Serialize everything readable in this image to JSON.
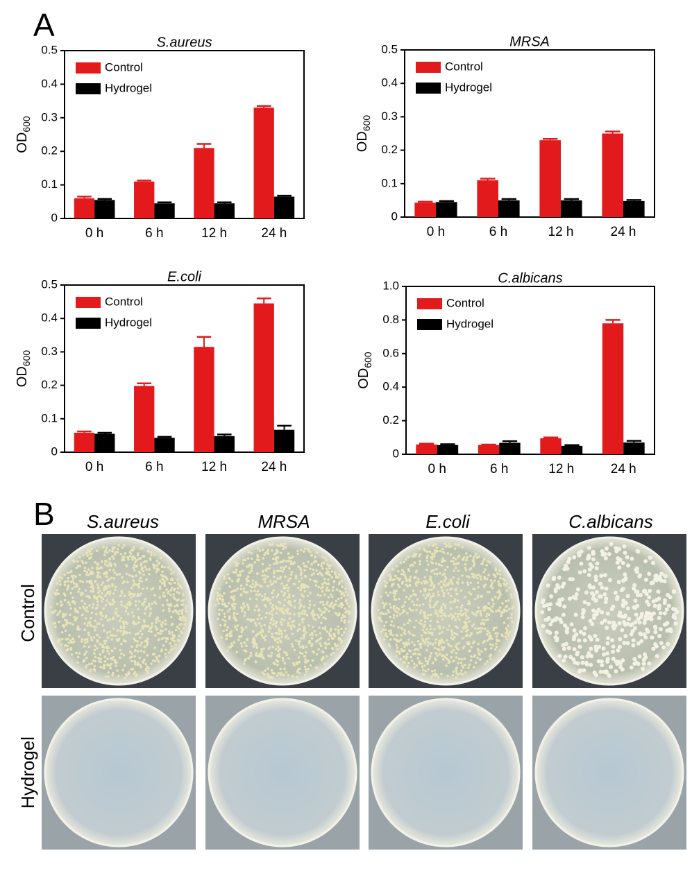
{
  "chart_data": [
    {
      "type": "bar",
      "title": "S.aureus",
      "ylabel": "OD",
      "ylabel_subscript": "600",
      "categories": [
        "0 h",
        "6 h",
        "12 h",
        "24 h"
      ],
      "series": [
        {
          "name": "Control",
          "color": "#e31a1c",
          "values": [
            0.06,
            0.11,
            0.21,
            0.33
          ],
          "errors": [
            0.005,
            0.003,
            0.012,
            0.005
          ]
        },
        {
          "name": "Hydrogel",
          "color": "#000000",
          "values": [
            0.055,
            0.045,
            0.045,
            0.065
          ],
          "errors": [
            0.003,
            0.003,
            0.003,
            0.003
          ]
        }
      ],
      "ylim": [
        0,
        0.5
      ],
      "yticks": [
        0,
        0.1,
        0.2,
        0.3,
        0.4,
        0.5
      ],
      "legend": "upper left"
    },
    {
      "type": "bar",
      "title": "MRSA",
      "ylabel": "OD",
      "ylabel_subscript": "600",
      "categories": [
        "0 h",
        "6 h",
        "12 h",
        "24 h"
      ],
      "series": [
        {
          "name": "Control",
          "color": "#e31a1c",
          "values": [
            0.043,
            0.11,
            0.23,
            0.25
          ],
          "errors": [
            0.003,
            0.005,
            0.004,
            0.006
          ]
        },
        {
          "name": "Hydrogel",
          "color": "#000000",
          "values": [
            0.045,
            0.05,
            0.05,
            0.048
          ],
          "errors": [
            0.003,
            0.004,
            0.004,
            0.003
          ]
        }
      ],
      "ylim": [
        0,
        0.5
      ],
      "yticks": [
        0,
        0.1,
        0.2,
        0.3,
        0.4,
        0.5
      ],
      "legend": "upper left"
    },
    {
      "type": "bar",
      "title": "E.coli",
      "ylabel": "OD",
      "ylabel_subscript": "600",
      "categories": [
        "0 h",
        "6 h",
        "12 h",
        "24 h"
      ],
      "series": [
        {
          "name": "Control",
          "color": "#e31a1c",
          "values": [
            0.058,
            0.198,
            0.315,
            0.445
          ],
          "errors": [
            0.004,
            0.008,
            0.03,
            0.015
          ]
        },
        {
          "name": "Hydrogel",
          "color": "#000000",
          "values": [
            0.055,
            0.043,
            0.048,
            0.067
          ],
          "errors": [
            0.003,
            0.003,
            0.005,
            0.012
          ]
        }
      ],
      "ylim": [
        0,
        0.5
      ],
      "yticks": [
        0,
        0.1,
        0.2,
        0.3,
        0.4,
        0.5
      ],
      "legend": "upper left"
    },
    {
      "type": "bar",
      "title": "C.albicans",
      "ylabel": "OD",
      "ylabel_subscript": "600",
      "categories": [
        "0 h",
        "6 h",
        "12 h",
        "24 h"
      ],
      "series": [
        {
          "name": "Control",
          "color": "#e31a1c",
          "values": [
            0.058,
            0.055,
            0.095,
            0.78
          ],
          "errors": [
            0.005,
            0.003,
            0.005,
            0.02
          ]
        },
        {
          "name": "Hydrogel",
          "color": "#000000",
          "values": [
            0.055,
            0.068,
            0.05,
            0.07
          ],
          "errors": [
            0.005,
            0.01,
            0.005,
            0.01
          ]
        }
      ],
      "ylim": [
        0,
        1
      ],
      "yticks": [
        0,
        0.2,
        0.4,
        0.6,
        0.8,
        {
          "value": 1,
          "label": "1.0"
        }
      ],
      "legend": "upper left"
    }
  ],
  "panels": {
    "a": "A",
    "b": "B"
  },
  "photos": {
    "columns": [
      "S.aureus",
      "MRSA",
      "E.coli",
      "C.albicans"
    ],
    "rows": [
      "Control",
      "Hydrogel"
    ]
  }
}
